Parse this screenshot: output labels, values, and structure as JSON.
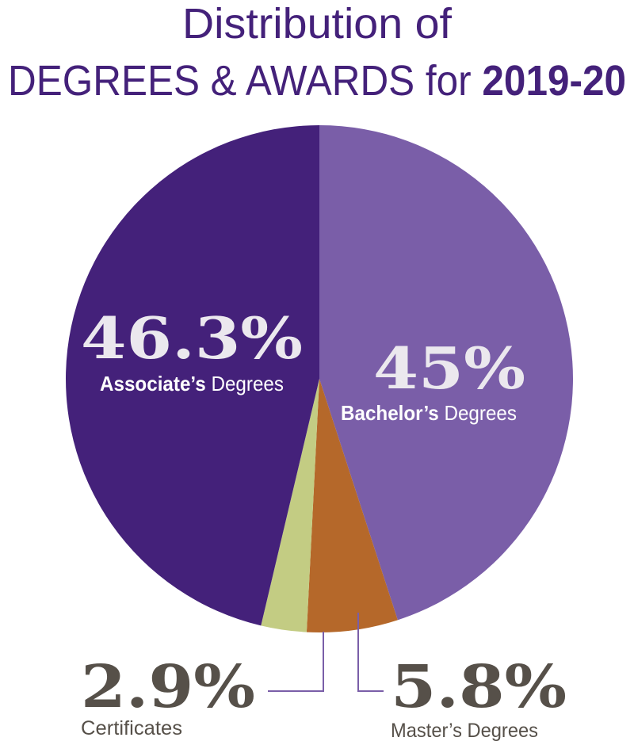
{
  "chart_data": {
    "type": "pie",
    "title_line1": "Distribution of",
    "title_line2": "DEGREES & AWARDS for ",
    "title_year": "2019-20",
    "slices": [
      {
        "pct_label": "45%",
        "value": 45.0,
        "label_bold": "Bachelor’s",
        "label_rest": " Degrees",
        "color": "#7a5ea8"
      },
      {
        "pct_label": "5.8%",
        "value": 5.8,
        "label_bold": "",
        "label_rest": "Master’s Degrees",
        "color": "#b5682a"
      },
      {
        "pct_label": "2.9%",
        "value": 2.9,
        "label_bold": "",
        "label_rest": "Certificates",
        "color": "#c3cc83"
      },
      {
        "pct_label": "46.3%",
        "value": 46.3,
        "label_bold": "Associate’s",
        "label_rest": " Degrees",
        "color": "#44217a"
      }
    ]
  },
  "colors": {
    "title": "#44217a",
    "pct_on_slice": "#ebe8ee",
    "label_on_slice": "#ffffff",
    "pct_outside": "#565049",
    "leader_line": "#7a5ea8"
  }
}
